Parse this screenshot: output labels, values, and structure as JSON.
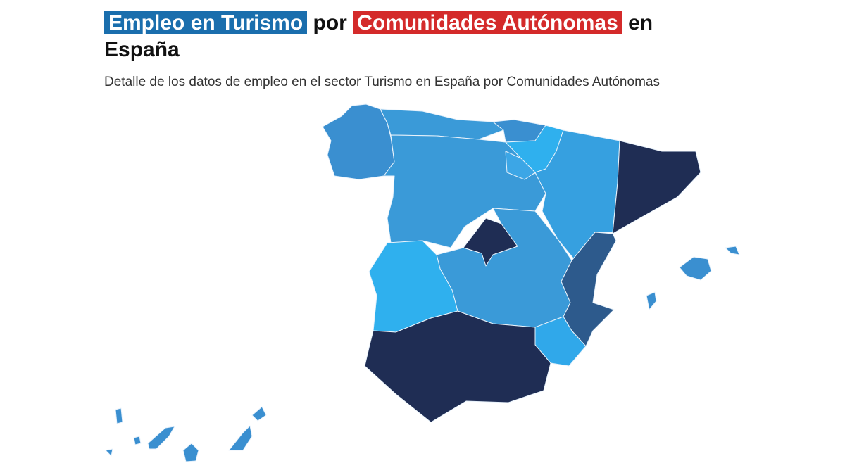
{
  "header": {
    "title": {
      "part1": "Empleo en Turismo",
      "part2": "por",
      "part3": "Comunidades Autónomas",
      "part4": "en España"
    },
    "subtitle": "Detalle de los datos de empleo en el sector Turismo en España por Comunidades Autónomas"
  }
}
